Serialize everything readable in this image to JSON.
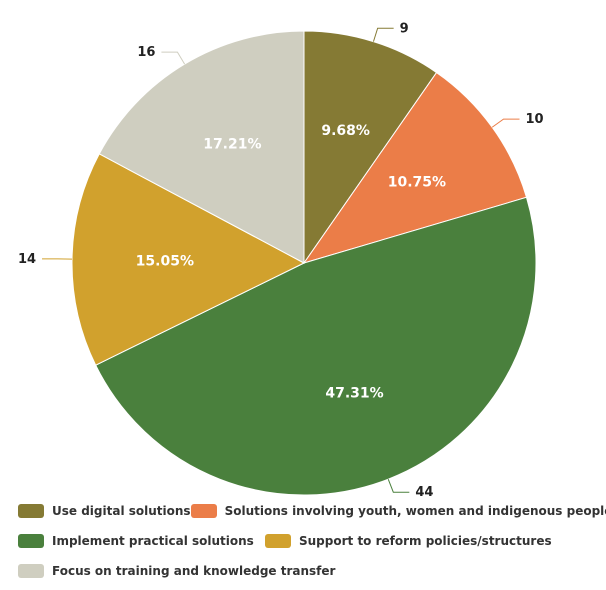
{
  "chart_data": {
    "type": "pie",
    "title": "",
    "slices": [
      {
        "name": "Use digital solutions",
        "value": 9,
        "percent": "9.68%",
        "color": "#857a34"
      },
      {
        "name": "Solutions involving youth, women and indigenous people",
        "value": 10,
        "percent": "10.75%",
        "color": "#eb7d48"
      },
      {
        "name": "Implement practical solutions",
        "value": 44,
        "percent": "47.31%",
        "color": "#4a803d"
      },
      {
        "name": "Support to reform policies/structures",
        "value": 14,
        "percent": "15.05%",
        "color": "#d1a12d"
      },
      {
        "name": "Focus on training and knowledge transfer",
        "value": 16,
        "percent": "17.21%",
        "color": "#cfcec0"
      }
    ],
    "legend_placement": "bottom",
    "start_angle": "top",
    "direction": "clockwise"
  }
}
